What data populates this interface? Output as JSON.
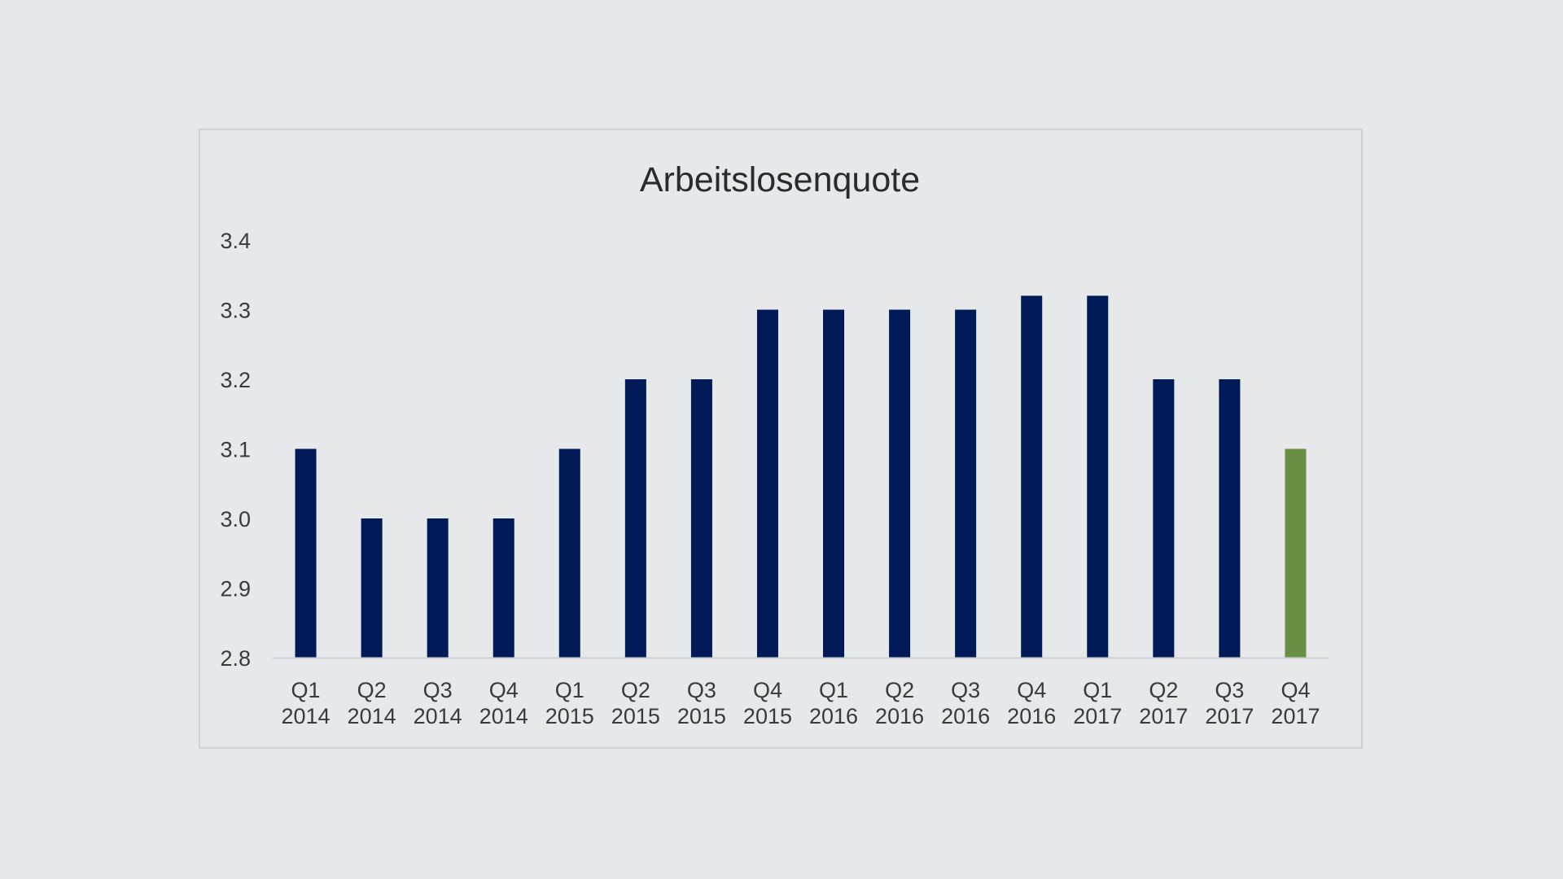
{
  "chart_data": {
    "type": "bar",
    "title": "Arbeitslosenquote",
    "xlabel": "",
    "ylabel": "",
    "ylim": [
      2.8,
      3.4
    ],
    "yticks": [
      "3.4",
      "3.3",
      "3.2",
      "3.1",
      "3.0",
      "2.9",
      "2.8"
    ],
    "ytick_values": [
      3.4,
      3.3,
      3.2,
      3.1,
      3.0,
      2.9,
      2.8
    ],
    "grid": false,
    "categories": [
      {
        "line1": "Q1",
        "line2": "2014"
      },
      {
        "line1": "Q2",
        "line2": "2014"
      },
      {
        "line1": "Q3",
        "line2": "2014"
      },
      {
        "line1": "Q4",
        "line2": "2014"
      },
      {
        "line1": "Q1",
        "line2": "2015"
      },
      {
        "line1": "Q2",
        "line2": "2015"
      },
      {
        "line1": "Q3",
        "line2": "2015"
      },
      {
        "line1": "Q4",
        "line2": "2015"
      },
      {
        "line1": "Q1",
        "line2": "2016"
      },
      {
        "line1": "Q2",
        "line2": "2016"
      },
      {
        "line1": "Q3",
        "line2": "2016"
      },
      {
        "line1": "Q4",
        "line2": "2016"
      },
      {
        "line1": "Q1",
        "line2": "2017"
      },
      {
        "line1": "Q2",
        "line2": "2017"
      },
      {
        "line1": "Q3",
        "line2": "2017"
      },
      {
        "line1": "Q4",
        "line2": "2017"
      }
    ],
    "values": [
      3.1,
      3.0,
      3.0,
      3.0,
      3.1,
      3.2,
      3.2,
      3.3,
      3.3,
      3.3,
      3.3,
      3.32,
      3.32,
      3.2,
      3.2,
      3.1
    ],
    "bar_colors": [
      "#001a57",
      "#001a57",
      "#001a57",
      "#001a57",
      "#001a57",
      "#001a57",
      "#001a57",
      "#001a57",
      "#001a57",
      "#001a57",
      "#001a57",
      "#001a57",
      "#001a57",
      "#001a57",
      "#001a57",
      "#6a8e43"
    ],
    "axis_color": "#cfd1d5"
  }
}
